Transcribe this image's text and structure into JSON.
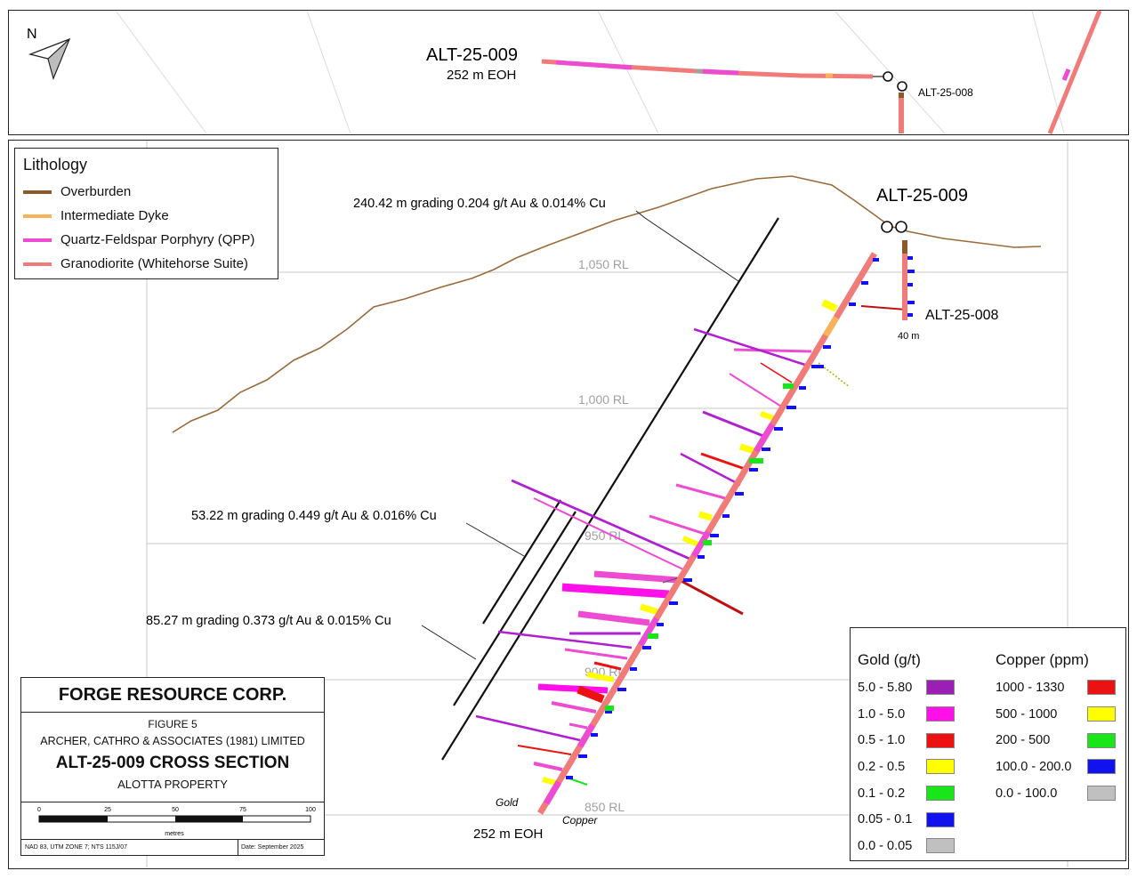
{
  "plan_view": {
    "north_label": "N",
    "hole_009_label": "ALT-25-009",
    "hole_009_eoh": "252 m EOH",
    "hole_008_label": "ALT-25-008"
  },
  "section": {
    "hole_009_label": "ALT-25-009",
    "hole_008_label": "ALT-25-008",
    "hole_008_depth": "40 m",
    "eoh_label": "252 m EOH",
    "gold_axis_label": "Gold",
    "copper_axis_label": "Copper",
    "rl_labels": [
      "1,050 RL",
      "1,000 RL",
      "950 RL",
      "900 RL",
      "850 RL"
    ],
    "intercepts": [
      "240.42 m grading 0.204 g/t Au & 0.014% Cu",
      "53.22 m grading 0.449 g/t Au & 0.016% Cu",
      "85.27 m grading 0.373 g/t Au & 0.015% Cu"
    ]
  },
  "lithology_legend": {
    "title": "Lithology",
    "items": [
      {
        "label": "Overburden",
        "color": "#8b5a2b"
      },
      {
        "label": "Intermediate Dyke",
        "color": "#f7b25a"
      },
      {
        "label": "Quartz-Feldspar Porphyry (QPP)",
        "color": "#ee4bd3"
      },
      {
        "label": "Granodiorite (Whitehorse Suite)",
        "color": "#f07b79"
      }
    ]
  },
  "gold_legend": {
    "title": "Gold (g/t)",
    "items": [
      {
        "label": "5.0 - 5.80",
        "color": "#9b1fb5"
      },
      {
        "label": "1.0 - 5.0",
        "color": "#ff10e8"
      },
      {
        "label": "0.5 - 1.0",
        "color": "#ec1212"
      },
      {
        "label": "0.2 - 0.5",
        "color": "#ffff00"
      },
      {
        "label": "0.1 - 0.2",
        "color": "#19e619"
      },
      {
        "label": "0.05 - 0.1",
        "color": "#1212ee"
      },
      {
        "label": "0.0 - 0.05",
        "color": "#c0c0c0"
      }
    ]
  },
  "copper_legend": {
    "title": "Copper (ppm)",
    "items": [
      {
        "label": "1000 - 1330",
        "color": "#ec1212"
      },
      {
        "label": "500 - 1000",
        "color": "#ffff00"
      },
      {
        "label": "200 - 500",
        "color": "#19e619"
      },
      {
        "label": "100.0 - 200.0",
        "color": "#1212ee"
      },
      {
        "label": "0.0 - 100.0",
        "color": "#c0c0c0"
      }
    ]
  },
  "title_block": {
    "company": "FORGE RESOURCE CORP.",
    "figure": "FIGURE 5",
    "organization": "ARCHER, CATHRO & ASSOCIATES (1981) LIMITED",
    "section_title": "ALT-25-009 CROSS SECTION",
    "property": "ALOTTA PROPERTY",
    "scale_ticks": [
      "0",
      "25",
      "50",
      "75",
      "100"
    ],
    "scale_unit": "metres",
    "datum": "NAD 83, UTM ZONE 7; NTS 115J/07",
    "date": "Date: September 2025"
  },
  "colors": {
    "topography": "#9c6a3a",
    "grid": "#c8c8c8",
    "granodiorite": "#f07b79",
    "qpp": "#ee4bd3",
    "dyke": "#f7b25a",
    "overburden": "#8b5a2b"
  }
}
